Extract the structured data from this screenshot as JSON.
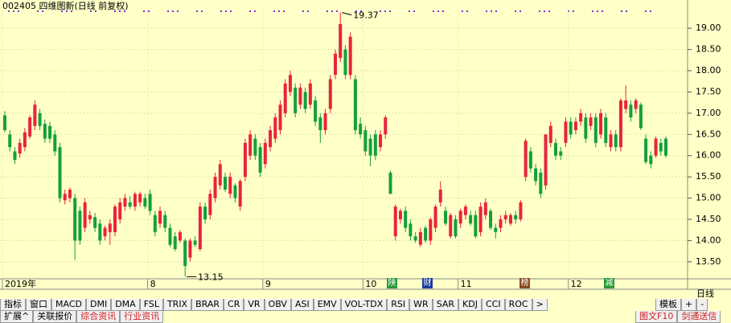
{
  "chart_data": {
    "type": "candlestick",
    "title": "002405 四维图新(日线 前复权)",
    "categories": [
      "2019年",
      null,
      null,
      null,
      null,
      null,
      null,
      null,
      null,
      null,
      null,
      null,
      null,
      null,
      null,
      null,
      null,
      null,
      null,
      null,
      null,
      null,
      null,
      null,
      null,
      null,
      null,
      null,
      null,
      "8",
      null,
      null,
      null,
      null,
      null,
      null,
      null,
      null,
      null,
      null,
      null,
      null,
      null,
      null,
      null,
      null,
      null,
      null,
      null,
      null,
      null,
      null,
      "9",
      null,
      null,
      null,
      null,
      null,
      null,
      null,
      null,
      null,
      null,
      null,
      null,
      null,
      null,
      null,
      null,
      null,
      null,
      null,
      "10",
      null,
      null,
      null,
      null,
      null,
      null,
      null,
      null,
      null,
      null,
      null,
      null,
      null,
      null,
      null,
      null,
      null,
      null,
      "11",
      null,
      null,
      null,
      null,
      null,
      null,
      null,
      null,
      null,
      null,
      null,
      null,
      null,
      null,
      null,
      null,
      null,
      null,
      null,
      null,
      null,
      "12",
      null,
      null,
      null,
      null,
      null,
      null,
      null,
      null,
      null,
      null,
      null,
      null,
      null,
      null,
      null,
      null,
      null,
      null,
      null
    ],
    "open": [
      16.95,
      16.5,
      16.1,
      16.05,
      16.2,
      16.45,
      16.7,
      17.0,
      16.75,
      16.7,
      16.5,
      16.2,
      14.95,
      15.0,
      15.0,
      14.7,
      14.3,
      14.5,
      14.55,
      14.4,
      14.1,
      14.2,
      14.2,
      14.5,
      14.8,
      14.9,
      14.8,
      14.9,
      15.0,
      15.1,
      14.6,
      14.4,
      14.6,
      14.3,
      14.1,
      14.0,
      14.0,
      13.6,
      14.0,
      13.8,
      14.8,
      14.6,
      15.0,
      15.3,
      15.5,
      15.1,
      15.3,
      14.8,
      15.5,
      16.0,
      16.4,
      16.2,
      15.8,
      16.2,
      16.4,
      16.6,
      17.0,
      17.5,
      17.6,
      17.2,
      17.5,
      17.2,
      17.3,
      16.9,
      16.6,
      17.1,
      17.9,
      18.3,
      18.5,
      17.9,
      17.8,
      16.75,
      16.6,
      16.4,
      16.5,
      16.2,
      16.5,
      15.6,
      14.1,
      14.5,
      14.7,
      14.4,
      14.1,
      13.9,
      14.3,
      14.0,
      14.3,
      14.9,
      14.7,
      14.1,
      14.5,
      14.4,
      14.6,
      14.6,
      14.6,
      14.2,
      14.6,
      14.7,
      14.3,
      14.3,
      14.5,
      14.4,
      14.6,
      14.5,
      15.5,
      16.1,
      15.7,
      15.6,
      15.3,
      16.3,
      16.3,
      16.1,
      16.3,
      16.8,
      16.6,
      16.8,
      16.9,
      16.7,
      16.9,
      16.5,
      16.9,
      16.2,
      16.5,
      16.2,
      17.1,
      17.2,
      17.1,
      17.2,
      16.4,
      16.0,
      16.0,
      16.3,
      16.4
    ],
    "high": [
      17.05,
      16.6,
      16.2,
      16.4,
      16.65,
      16.95,
      17.3,
      17.1,
      16.85,
      16.8,
      16.6,
      16.3,
      15.2,
      15.25,
      15.1,
      14.8,
      15.0,
      14.7,
      14.65,
      14.5,
      14.35,
      14.5,
      14.85,
      15.0,
      15.1,
      15.05,
      15.15,
      15.15,
      15.1,
      15.2,
      14.7,
      14.8,
      14.7,
      14.4,
      14.2,
      14.25,
      14.05,
      14.05,
      14.1,
      14.9,
      14.9,
      15.2,
      15.6,
      15.9,
      15.6,
      15.6,
      15.35,
      15.45,
      16.4,
      16.6,
      16.5,
      16.3,
      16.4,
      16.7,
      17.0,
      17.3,
      17.8,
      18.0,
      17.7,
      17.7,
      17.6,
      17.8,
      17.4,
      17.0,
      17.1,
      17.9,
      18.5,
      19.37,
      18.6,
      18.9,
      17.9,
      16.9,
      16.7,
      16.5,
      16.6,
      16.6,
      16.95,
      15.65,
      14.85,
      14.75,
      14.8,
      14.5,
      14.2,
      14.3,
      14.35,
      14.55,
      14.85,
      15.4,
      14.8,
      14.65,
      14.6,
      14.75,
      14.85,
      14.7,
      14.7,
      14.9,
      15.0,
      14.75,
      14.4,
      14.6,
      14.7,
      14.65,
      14.7,
      14.95,
      16.4,
      16.2,
      15.8,
      15.7,
      16.5,
      16.8,
      16.4,
      16.2,
      16.9,
      16.9,
      16.9,
      17.1,
      17.0,
      17.0,
      17.0,
      17.1,
      17.0,
      16.6,
      16.6,
      17.35,
      17.65,
      17.3,
      17.35,
      17.25,
      16.5,
      16.1,
      16.45,
      16.4,
      16.45
    ],
    "low": [
      16.55,
      16.1,
      15.8,
      15.95,
      16.1,
      16.4,
      16.6,
      16.6,
      16.3,
      16.3,
      16.0,
      14.9,
      14.85,
      14.9,
      13.55,
      13.9,
      14.2,
      14.4,
      14.2,
      13.9,
      14.0,
      13.9,
      14.1,
      14.4,
      14.7,
      14.75,
      14.7,
      14.8,
      14.75,
      14.6,
      14.1,
      14.3,
      14.2,
      13.85,
      13.75,
      13.95,
      13.15,
      13.5,
      13.85,
      13.75,
      14.4,
      14.5,
      14.9,
      15.2,
      15.15,
      15.0,
      14.9,
      14.7,
      15.4,
      15.9,
      15.9,
      15.5,
      15.7,
      16.1,
      16.3,
      16.5,
      16.9,
      17.4,
      16.9,
      17.1,
      17.0,
      17.1,
      16.7,
      16.3,
      16.5,
      17.0,
      17.8,
      18.2,
      17.8,
      17.8,
      16.5,
      16.4,
      16.0,
      15.75,
      15.9,
      16.1,
      16.4,
      15.1,
      14.0,
      14.4,
      14.2,
      14.0,
      13.95,
      13.85,
      13.95,
      13.9,
      14.2,
      14.8,
      14.35,
      14.05,
      14.05,
      14.3,
      14.5,
      14.35,
      14.05,
      14.1,
      14.5,
      14.25,
      14.05,
      14.2,
      14.4,
      14.35,
      14.4,
      14.45,
      15.4,
      15.6,
      15.3,
      15.0,
      15.2,
      16.2,
      15.9,
      15.9,
      16.2,
      16.4,
      16.5,
      16.7,
      16.3,
      16.6,
      16.2,
      16.4,
      16.2,
      16.1,
      16.1,
      16.1,
      17.0,
      16.8,
      17.0,
      16.6,
      15.8,
      15.7,
      15.95,
      16.0,
      15.95
    ],
    "close": [
      16.6,
      16.2,
      15.9,
      16.3,
      16.55,
      16.9,
      17.2,
      16.7,
      16.4,
      16.4,
      16.1,
      15.0,
      15.1,
      15.2,
      14.0,
      14.0,
      14.9,
      14.6,
      14.3,
      14.0,
      14.3,
      14.4,
      14.8,
      14.9,
      15.0,
      14.8,
      15.1,
      15.1,
      14.8,
      14.7,
      14.2,
      14.7,
      14.3,
      13.9,
      13.8,
      14.2,
      13.4,
      14.0,
      13.9,
      14.8,
      14.5,
      15.1,
      15.5,
      15.8,
      15.2,
      15.5,
      15.0,
      15.4,
      16.3,
      16.5,
      16.0,
      15.6,
      16.3,
      16.6,
      16.9,
      17.2,
      17.7,
      17.9,
      17.0,
      17.6,
      17.1,
      17.7,
      16.8,
      16.6,
      17.0,
      17.8,
      18.4,
      19.1,
      17.9,
      18.8,
      16.6,
      16.5,
      16.1,
      16.0,
      16.0,
      16.5,
      16.9,
      15.1,
      14.8,
      14.7,
      14.3,
      14.1,
      14.0,
      14.2,
      14.0,
      14.5,
      14.8,
      15.2,
      14.4,
      14.6,
      14.1,
      14.7,
      14.8,
      14.4,
      14.1,
      14.8,
      14.9,
      14.3,
      14.2,
      14.5,
      14.6,
      14.6,
      14.5,
      14.9,
      16.35,
      15.7,
      15.4,
      15.1,
      16.5,
      16.7,
      16.0,
      16.0,
      16.8,
      16.5,
      16.8,
      17.0,
      16.4,
      16.9,
      16.3,
      17.0,
      16.3,
      16.5,
      16.2,
      17.3,
      17.3,
      16.9,
      17.3,
      16.65,
      15.85,
      15.8,
      16.4,
      16.1,
      16.0
    ],
    "up_color": "#e8243c",
    "down_color": "#14a03c",
    "ylim": [
      13.1,
      19.4
    ],
    "yticks": [
      {
        "value": 13.5,
        "label": "13.50"
      },
      {
        "value": 14,
        "label": "14.00"
      },
      {
        "value": 14.5,
        "label": "14.50"
      },
      {
        "value": 15,
        "label": "15.00"
      },
      {
        "value": 15.5,
        "label": "15.50"
      },
      {
        "value": 16,
        "label": "16.00"
      },
      {
        "value": 16.5,
        "label": "16.50"
      },
      {
        "value": 17,
        "label": "17.00"
      },
      {
        "value": 17.5,
        "label": "17.50"
      },
      {
        "value": 18,
        "label": "18.00"
      },
      {
        "value": 18.5,
        "label": "18.50"
      },
      {
        "value": 19,
        "label": "19.00"
      }
    ],
    "grid": true,
    "period": "日线",
    "events": [
      "陕",
      "财",
      "榜",
      "减"
    ]
  },
  "toolbar": {
    "tabs": [
      "指标",
      "窗口",
      "MACD",
      "DMI",
      "DMA",
      "FSL",
      "TRIX",
      "BRAR",
      "CR",
      "VR",
      "OBV",
      "ASI",
      "EMV",
      "VOL-TDX",
      "RSI",
      "WR",
      "SAR",
      "KDJ",
      "CCI",
      "ROC",
      ">"
    ],
    "right": [
      "模板",
      "+",
      "-"
    ],
    "bottom": [
      "扩展^",
      "关联报价",
      "综合资讯",
      "行业资讯"
    ],
    "bottom_right": [
      "图文F10",
      "剑通送信"
    ]
  }
}
